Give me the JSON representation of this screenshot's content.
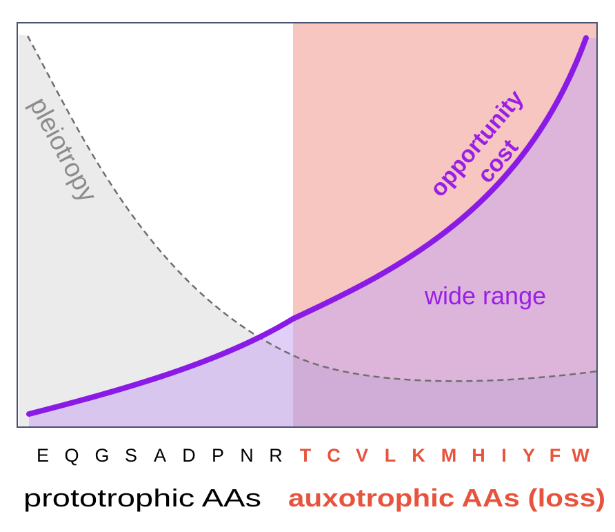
{
  "labels": {
    "pleiotropy": "pleiotropy",
    "opportunity": "opportunity",
    "cost": "cost",
    "wide_range": "wide range",
    "prototrophic_group": "prototrophic AAs",
    "auxotrophic_group": "auxotrophic AAs (loss)"
  },
  "amino_acids": {
    "prototrophic": [
      "E",
      "Q",
      "G",
      "S",
      "A",
      "D",
      "P",
      "N",
      "R"
    ],
    "auxotrophic": [
      "T",
      "C",
      "V",
      "L",
      "K",
      "M",
      "H",
      "I",
      "Y",
      "F",
      "W"
    ]
  },
  "colors": {
    "prototrophic_text": "#000000",
    "auxotrophic_text": "#e8533d",
    "opportunity_cost_curve": "#8a1ae6",
    "pleiotropy_curve": "#6e6e6e",
    "pleiotropy_label": "#8c8c8c",
    "wide_range_label": "#9a1fe6",
    "auxotrophic_region": "#f7c6c1",
    "grey_region": "#ebebeb",
    "purple_fill": "#c9a8f0"
  }
}
